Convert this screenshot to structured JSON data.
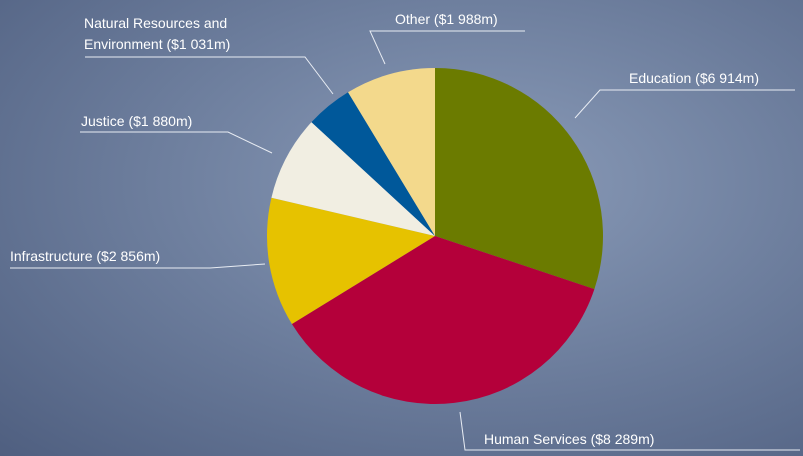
{
  "chart_data": {
    "type": "pie",
    "categories": [
      "Education",
      "Human Services",
      "Infrastructure",
      "Justice",
      "Natural Resources and Environment",
      "Other"
    ],
    "values": [
      6914,
      8289,
      2856,
      1880,
      1031,
      1988
    ],
    "value_labels": [
      "($6 914m)",
      "($8 289m)",
      "($2 856m)",
      "($1 880m)",
      "($1 031m)",
      "($1 988m)"
    ],
    "colors": [
      "#6b7b00",
      "#b4003a",
      "#e6c200",
      "#f1eee2",
      "#00589a",
      "#f3d98c"
    ]
  }
}
